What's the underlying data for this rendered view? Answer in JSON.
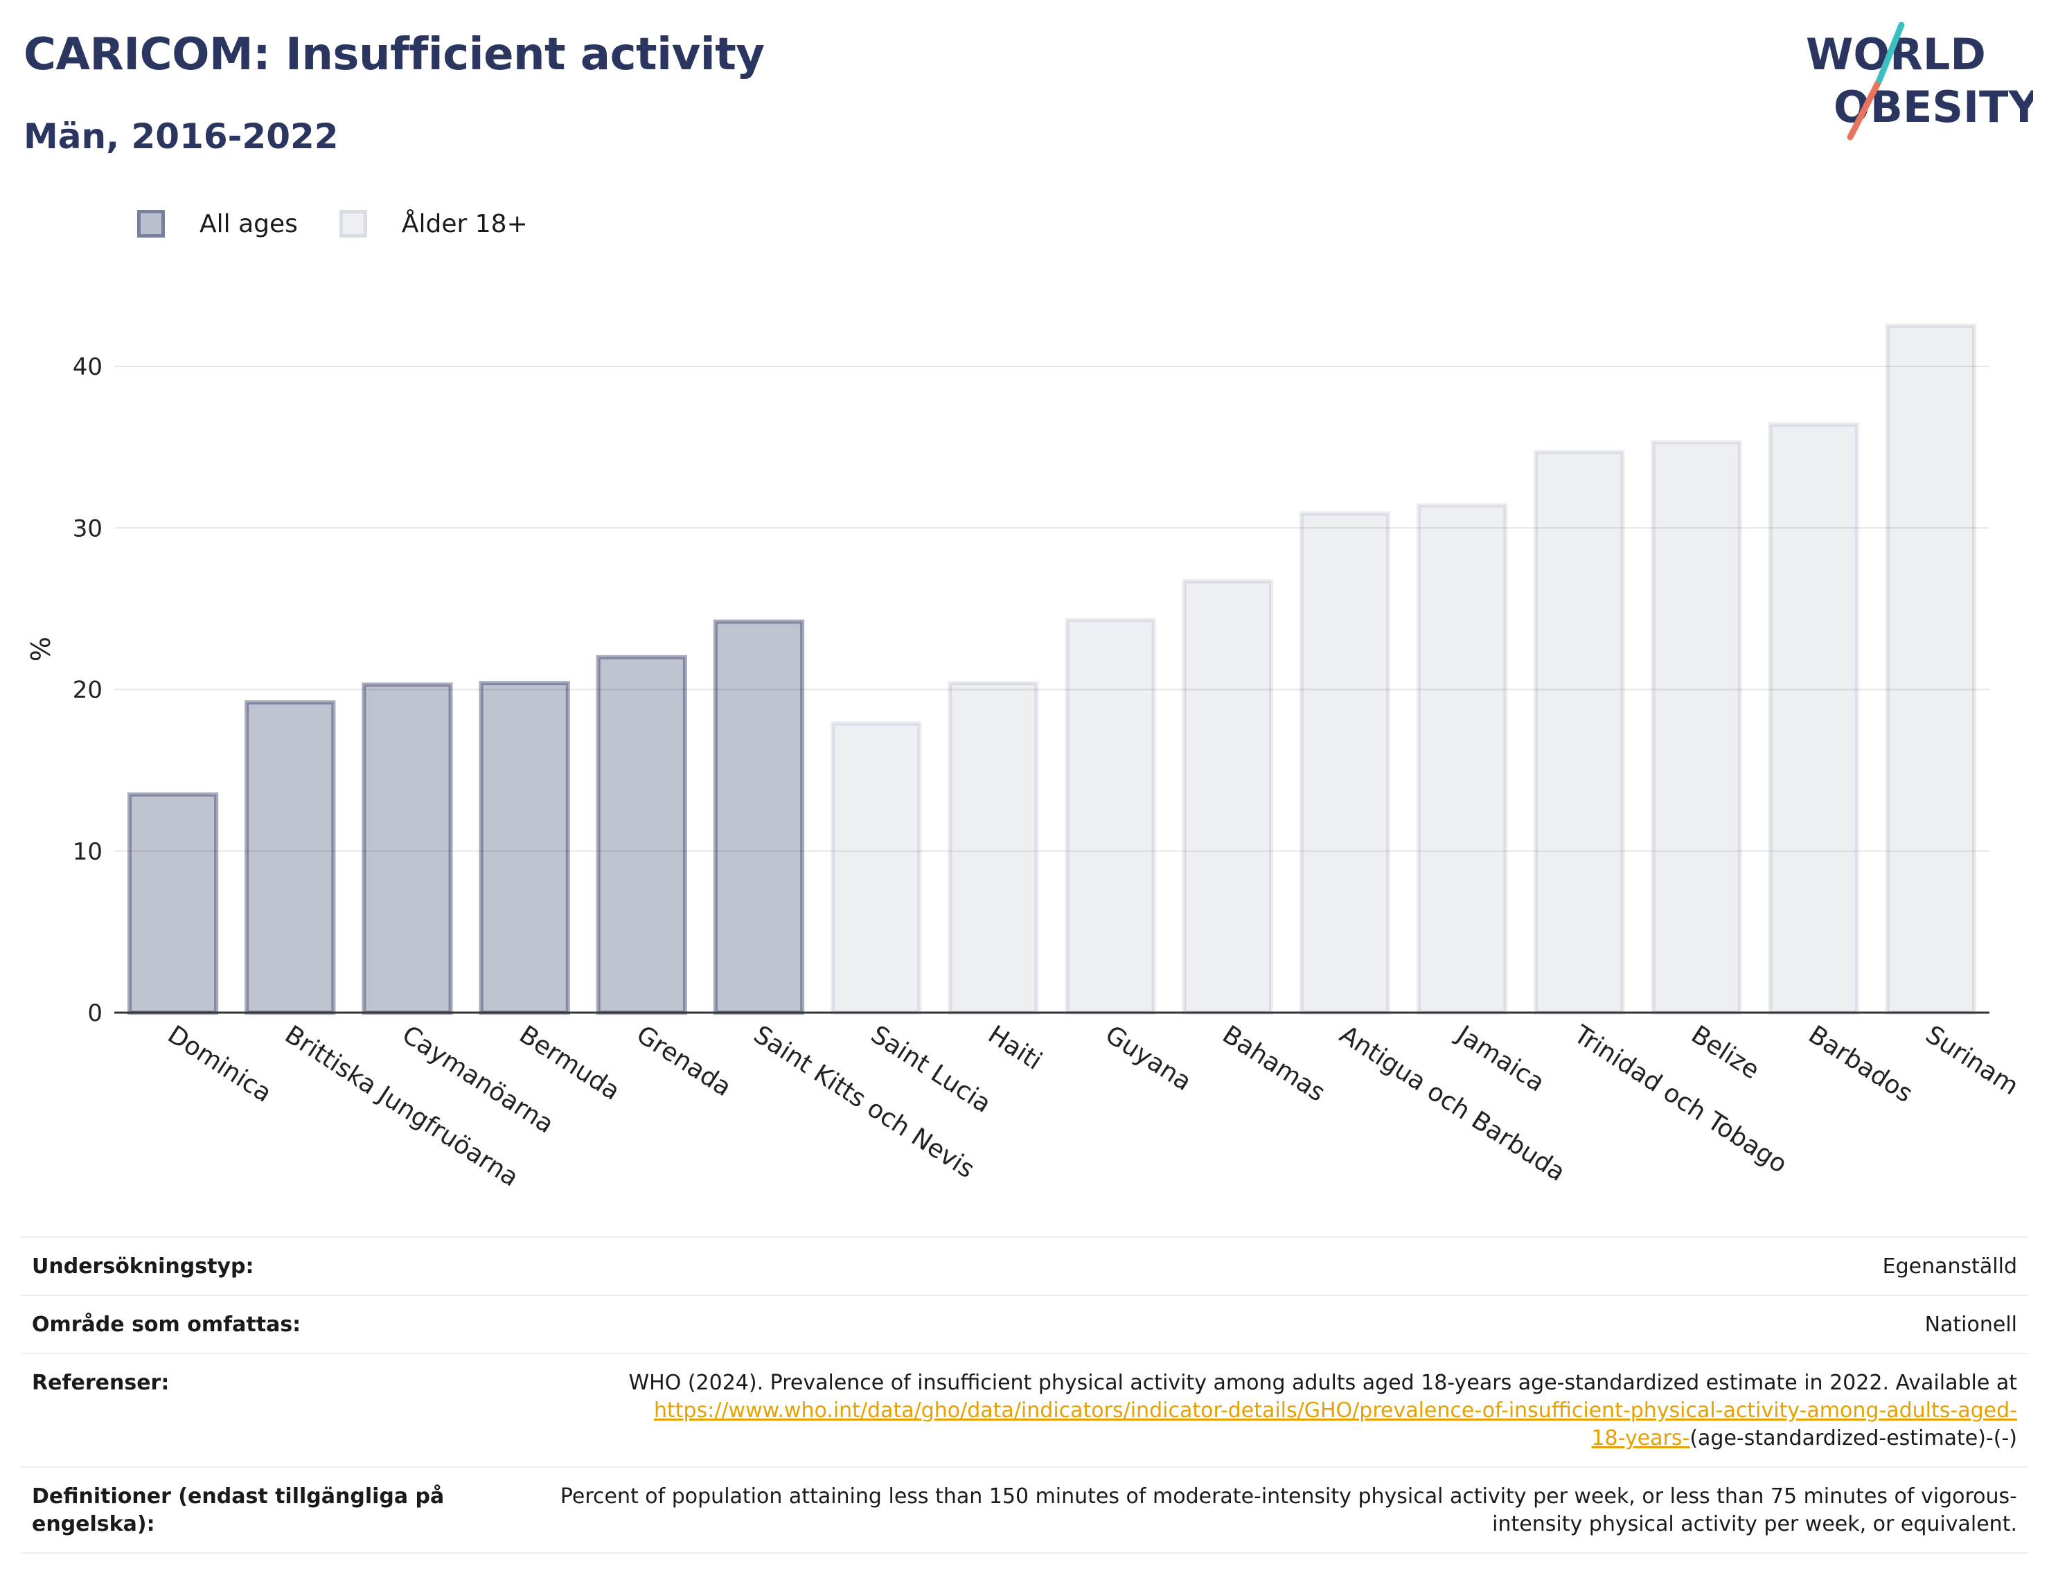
{
  "header": {
    "title": "CARICOM: Insufficient activity",
    "subtitle": "Män, 2016-2022"
  },
  "logo": {
    "line1": "WORLD",
    "line2": "OBESITY"
  },
  "legend": [
    {
      "label": "All ages",
      "color": "#2b3660"
    },
    {
      "label": "Ålder 18+",
      "color": "#c8cbdc"
    }
  ],
  "chart_data": {
    "type": "bar",
    "ylabel": "%",
    "ylim": [
      0,
      45
    ],
    "yticks": [
      0,
      10,
      20,
      30,
      40
    ],
    "grid": true,
    "legend_position": "top-left",
    "categories": [
      "Dominica",
      "Brittiska Jungfruöarna",
      "Caymanöarna",
      "Bermuda",
      "Grenada",
      "Saint Kitts och Nevis",
      "Saint Lucia",
      "Haiti",
      "Guyana",
      "Bahamas",
      "Antigua och Barbuda",
      "Jamaica",
      "Trinidad och Tobago",
      "Belize",
      "Barbados",
      "Surinam"
    ],
    "values": [
      13.5,
      19.2,
      20.3,
      20.4,
      22.0,
      24.2,
      17.9,
      20.4,
      24.3,
      26.7,
      30.9,
      31.4,
      34.7,
      35.3,
      36.4,
      42.5
    ],
    "series_index": [
      0,
      0,
      0,
      0,
      0,
      0,
      1,
      1,
      1,
      1,
      1,
      1,
      1,
      1,
      1,
      1
    ]
  },
  "meta": {
    "survey_label": "Undersökningstyp:",
    "survey_value": "Egenanställd",
    "area_label": "Område som omfattas:",
    "area_value": "Nationell",
    "ref_label": "Referenser:",
    "ref_text": "WHO (2024). Prevalence of insufficient physical activity among adults aged 18-years age-standardized estimate in 2022. Available at",
    "ref_link_a": "https://www.who.int/data/gho/data/indicators/indicator-details/GHO/prevalence-of-insufficient-physical-activity-among-adults-aged-",
    "ref_link_b": "18-years-",
    "ref_tail": "(age-standardized-estimate)-(-)",
    "def_label": "Definitioner (endast tillgängliga på engelska):",
    "def_value": "Percent of population attaining less than 150 minutes of moderate-intensity physical activity per week, or less than 75 minutes of vigorous-intensity physical activity per week, or equivalent."
  }
}
